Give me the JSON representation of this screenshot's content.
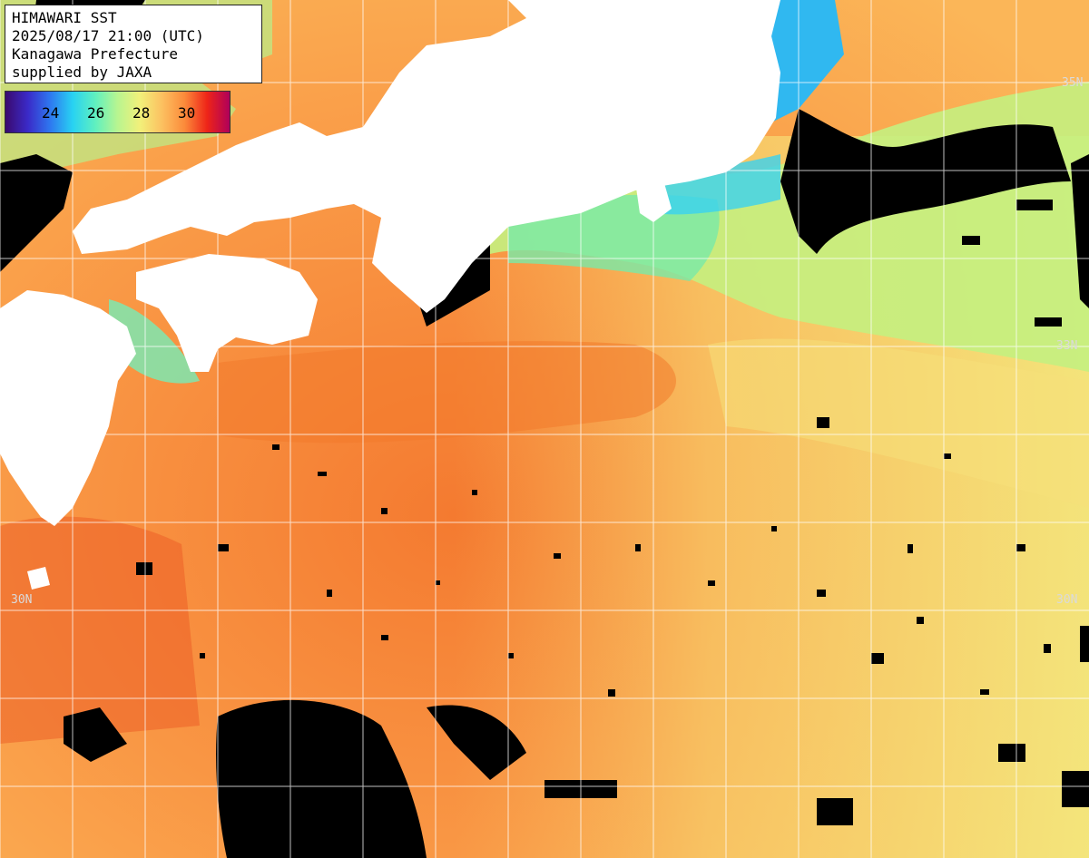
{
  "header": {
    "line1": "HIMAWARI SST",
    "line2": "2025/08/17 21:00 (UTC)",
    "line3": "Kanagawa Prefecture",
    "line4": "supplied by JAXA"
  },
  "colorbar": {
    "ticks": [
      "24",
      "26",
      "28",
      "30"
    ],
    "colors": [
      "#3a0a6e",
      "#3a2ac8",
      "#2e78f0",
      "#28d2f2",
      "#5ff0c0",
      "#b8f590",
      "#f2f07a",
      "#fcc060",
      "#fb8a3a",
      "#ee2418",
      "#b0005a"
    ]
  },
  "grid_labels": {
    "lat_35_left": "35N",
    "lat_35_right": "35N",
    "lat_33_right": "33N",
    "lat_30_left": "30N",
    "lat_30_right": "30N"
  },
  "colors": {
    "land": "#ffffff",
    "no_data": "#000000",
    "warm_sea": "#f89a48",
    "mid_sea": "#f8e070",
    "cool_sea": "#a8f27a",
    "cold_sea": "#38c8f0"
  }
}
